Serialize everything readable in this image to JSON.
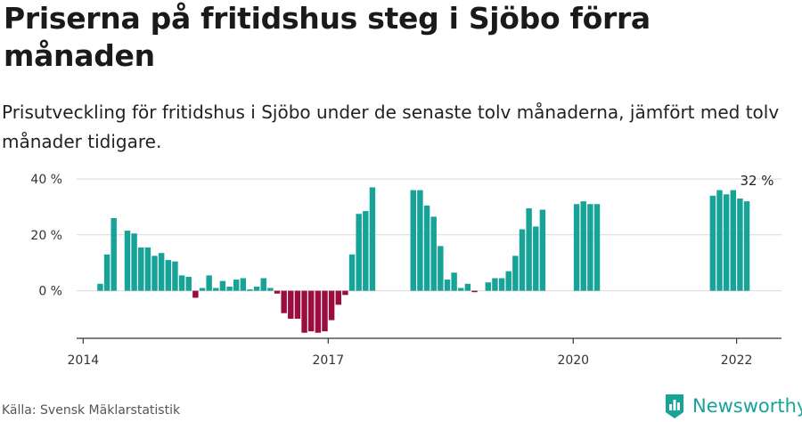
{
  "title": "Priserna på fritidshus steg i Sjöbo förra månaden",
  "subtitle": "Prisutveckling för fritidshus i Sjöbo under de senaste tolv månaderna, jämfört med tolv månader tidigare.",
  "source": "Källa: Svensk Mäklarstatistik",
  "brand": {
    "name": "Newsworthy",
    "logo_icon": "newsworthy-logo-icon"
  },
  "colors": {
    "positive": "#17a398",
    "negative": "#9b0d3f",
    "grid": "#d9d9d9",
    "axis": "#333333"
  },
  "chart_data": {
    "type": "bar",
    "title": "Priserna på fritidshus steg i Sjöbo förra månaden",
    "subtitle": "Prisutveckling för fritidshus i Sjöbo under de senaste tolv månaderna, jämfört med tolv månader tidigare.",
    "xlabel": "",
    "ylabel": "",
    "x_ticks": [
      {
        "label": "2014",
        "year": 2014
      },
      {
        "label": "2017",
        "year": 2017
      },
      {
        "label": "2020",
        "year": 2020
      },
      {
        "label": "2022",
        "year": 2022
      }
    ],
    "y_ticks": [
      {
        "label": "40 %",
        "value": 40
      },
      {
        "label": "20 %",
        "value": 20
      },
      {
        "label": "0 %",
        "value": 0
      }
    ],
    "xlim": [
      2013.92,
      2022.55
    ],
    "ylim": [
      -17,
      40
    ],
    "grid": true,
    "annotation": {
      "label": "32 %",
      "value": 32,
      "date": "2022-04"
    },
    "series": [
      {
        "date": "2014-03",
        "value": 2.5
      },
      {
        "date": "2014-04",
        "value": 13
      },
      {
        "date": "2014-05",
        "value": 26
      },
      {
        "date": "2014-07",
        "value": 21.5
      },
      {
        "date": "2014-08",
        "value": 20.5
      },
      {
        "date": "2014-09",
        "value": 15.5
      },
      {
        "date": "2014-10",
        "value": 15.5
      },
      {
        "date": "2014-11",
        "value": 12.5
      },
      {
        "date": "2014-12",
        "value": 13.5
      },
      {
        "date": "2015-01",
        "value": 11
      },
      {
        "date": "2015-02",
        "value": 10.5
      },
      {
        "date": "2015-03",
        "value": 5.5
      },
      {
        "date": "2015-04",
        "value": 5
      },
      {
        "date": "2015-05",
        "value": -2.5
      },
      {
        "date": "2015-06",
        "value": 1
      },
      {
        "date": "2015-07",
        "value": 5.5
      },
      {
        "date": "2015-08",
        "value": 1
      },
      {
        "date": "2015-09",
        "value": 3.5
      },
      {
        "date": "2015-10",
        "value": 1.5
      },
      {
        "date": "2015-11",
        "value": 4
      },
      {
        "date": "2015-12",
        "value": 4.5
      },
      {
        "date": "2016-01",
        "value": 0.5
      },
      {
        "date": "2016-02",
        "value": 1.5
      },
      {
        "date": "2016-03",
        "value": 4.5
      },
      {
        "date": "2016-04",
        "value": 1
      },
      {
        "date": "2016-05",
        "value": -1
      },
      {
        "date": "2016-06",
        "value": -8
      },
      {
        "date": "2016-07",
        "value": -10
      },
      {
        "date": "2016-08",
        "value": -10
      },
      {
        "date": "2016-09",
        "value": -15
      },
      {
        "date": "2016-10",
        "value": -14.5
      },
      {
        "date": "2016-11",
        "value": -15
      },
      {
        "date": "2016-12",
        "value": -14.5
      },
      {
        "date": "2017-01",
        "value": -10.5
      },
      {
        "date": "2017-02",
        "value": -5
      },
      {
        "date": "2017-03",
        "value": -1.5
      },
      {
        "date": "2017-04",
        "value": 13
      },
      {
        "date": "2017-05",
        "value": 27.5
      },
      {
        "date": "2017-06",
        "value": 28.5
      },
      {
        "date": "2017-07",
        "value": 37
      },
      {
        "date": "2018-01",
        "value": 36
      },
      {
        "date": "2018-02",
        "value": 36
      },
      {
        "date": "2018-03",
        "value": 30.5
      },
      {
        "date": "2018-04",
        "value": 26.5
      },
      {
        "date": "2018-05",
        "value": 16
      },
      {
        "date": "2018-06",
        "value": 4
      },
      {
        "date": "2018-07",
        "value": 6.5
      },
      {
        "date": "2018-08",
        "value": 1
      },
      {
        "date": "2018-09",
        "value": 2.5
      },
      {
        "date": "2018-10",
        "value": -0.5
      },
      {
        "date": "2018-12",
        "value": 3
      },
      {
        "date": "2019-01",
        "value": 4.5
      },
      {
        "date": "2019-02",
        "value": 4.5
      },
      {
        "date": "2019-03",
        "value": 7
      },
      {
        "date": "2019-04",
        "value": 12.5
      },
      {
        "date": "2019-05",
        "value": 22
      },
      {
        "date": "2019-06",
        "value": 29.5
      },
      {
        "date": "2019-07",
        "value": 23
      },
      {
        "date": "2019-08",
        "value": 29
      },
      {
        "date": "2020-01",
        "value": 31
      },
      {
        "date": "2020-02",
        "value": 32
      },
      {
        "date": "2020-03",
        "value": 31
      },
      {
        "date": "2020-04",
        "value": 31
      },
      {
        "date": "2021-09",
        "value": 34
      },
      {
        "date": "2021-10",
        "value": 36
      },
      {
        "date": "2021-11",
        "value": 34.5
      },
      {
        "date": "2021-12",
        "value": 36
      },
      {
        "date": "2022-01",
        "value": 33
      },
      {
        "date": "2022-02",
        "value": 32
      }
    ]
  }
}
